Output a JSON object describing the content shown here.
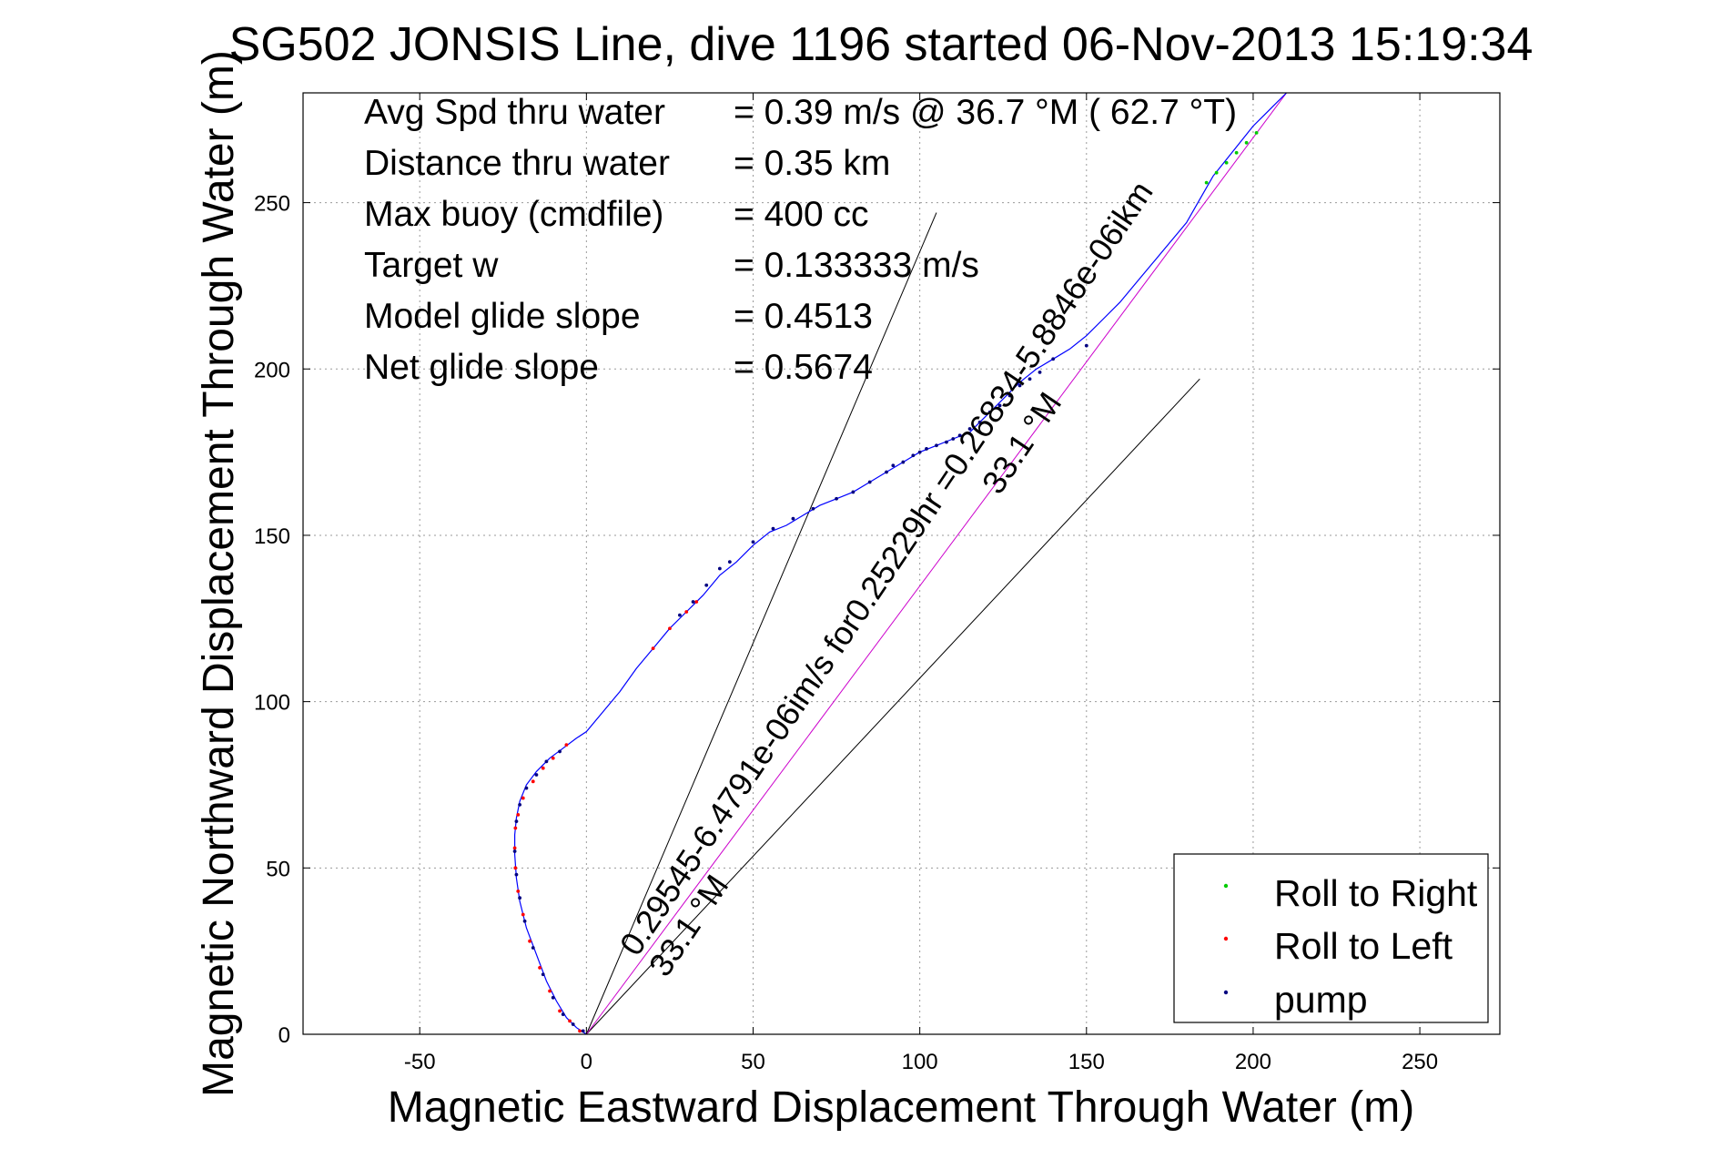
{
  "chart_data": {
    "type": "scatter",
    "title": "SG502 JONSIS Line, dive 1196 started 06-Nov-2013 15:19:34",
    "xlabel": "Magnetic Eastward Displacement Through Water (m)",
    "ylabel": "Magnetic Northward Displacement Through Water (m)",
    "xlim": [
      -85,
      274
    ],
    "ylim": [
      0,
      283
    ],
    "x_ticks": [
      -50,
      0,
      50,
      100,
      150,
      200,
      250
    ],
    "x_tick_labels": [
      "-50",
      "0",
      "50",
      "100",
      "150",
      "200",
      "250"
    ],
    "y_ticks": [
      0,
      50,
      100,
      150,
      200,
      250
    ],
    "y_tick_labels": [
      "0",
      "50",
      "100",
      "150",
      "200",
      "250"
    ],
    "grid": true,
    "legend_position": "bottom-right",
    "stats": [
      {
        "label": "Avg Spd thru water",
        "value": "=  0.39 m/s @  36.7 °M ( 62.7 °T)"
      },
      {
        "label": "Distance thru water",
        "value": "=  0.35 km"
      },
      {
        "label": "Max buoy (cmdfile)",
        "value": "= 400 cc"
      },
      {
        "label": "Target w",
        "value": "= 0.133333 m/s"
      },
      {
        "label": "Model glide slope",
        "value": "= 0.4513"
      },
      {
        "label": "Net glide slope",
        "value": "= 0.5674"
      }
    ],
    "annotations": [
      {
        "text": "0.29545-6.4791e-06im/s for0.25229hr =0.26834-5.8846e-06ikm",
        "angle_deg": 56
      },
      {
        "text": "33.1 °M",
        "angle_deg": 56
      },
      {
        "text": "33.1 °M",
        "angle_deg": 56
      }
    ],
    "reference_lines": [
      {
        "name": "glide-cone-upper",
        "x": [
          0,
          105
        ],
        "y": [
          0,
          247
        ]
      },
      {
        "name": "glide-cone-lower",
        "x": [
          0,
          184
        ],
        "y": [
          0,
          197
        ]
      },
      {
        "name": "net-heading-line",
        "x": [
          0,
          210
        ],
        "y": [
          0,
          283
        ]
      }
    ],
    "track": {
      "x": [
        0,
        -3,
        -6,
        -9,
        -12,
        -15,
        -18,
        -20,
        -21,
        -21.5,
        -21.5,
        -21,
        -20,
        -18,
        -15,
        -11,
        -7,
        -3,
        0,
        5,
        10,
        15,
        20,
        25,
        30,
        35,
        40,
        45,
        50,
        55,
        60,
        65,
        70,
        75,
        80,
        85,
        90,
        95,
        100,
        105,
        110,
        115,
        118,
        121,
        124,
        127,
        130,
        135,
        140,
        145,
        150,
        155,
        160,
        165,
        170,
        175,
        180,
        184,
        188,
        192,
        196,
        200,
        203,
        206,
        210
      ],
      "y": [
        0,
        2,
        5,
        10,
        16,
        24,
        32,
        40,
        47,
        54,
        60,
        65,
        70,
        75,
        79,
        83,
        86,
        89,
        91,
        97,
        103,
        110,
        116,
        122,
        127,
        132,
        138,
        142,
        147,
        151,
        153,
        156,
        159,
        161,
        163,
        166,
        169,
        172,
        175,
        177,
        179,
        181,
        184,
        187,
        190,
        193,
        196,
        200,
        203,
        206,
        210,
        215,
        220,
        226,
        232,
        238,
        244,
        251,
        258,
        263,
        268,
        273,
        276,
        279,
        283
      ]
    },
    "series": [
      {
        "name": "Roll to Right",
        "color": "#00cc00",
        "marker": ".",
        "x": [
          186,
          189,
          192,
          195,
          198,
          201
        ],
        "y": [
          256,
          259,
          262,
          265,
          268,
          271
        ]
      },
      {
        "name": "Roll to Left",
        "color": "#ff0000",
        "marker": ".",
        "x": [
          -2,
          -5,
          -8,
          -11,
          -14,
          -17,
          -19,
          -20.5,
          -21.3,
          -21.5,
          -21.3,
          -20.5,
          -19,
          -16,
          -13,
          -10,
          -6,
          20,
          25,
          30,
          33
        ],
        "y": [
          1,
          4,
          7,
          13,
          20,
          28,
          36,
          43,
          50,
          56,
          62,
          66,
          71,
          76,
          80,
          83,
          87,
          116,
          122,
          127,
          130
        ]
      },
      {
        "name": "pump",
        "color": "#000080",
        "marker": ".",
        "x": [
          -1,
          -4,
          -7,
          -10,
          -13,
          -16,
          -18.5,
          -20,
          -21,
          -21.5,
          -21,
          -20,
          -18,
          -15,
          -12,
          -8,
          28,
          32,
          36,
          40,
          43,
          50,
          56,
          62,
          68,
          75,
          80,
          85,
          90,
          92,
          95,
          98,
          100,
          102,
          105,
          108,
          110,
          112,
          115,
          118,
          121,
          124,
          127,
          130,
          133,
          136,
          140,
          150
        ],
        "y": [
          1,
          3,
          6,
          11,
          18,
          26,
          34,
          41,
          48,
          55,
          64,
          69,
          74,
          78,
          82,
          85,
          126,
          130,
          135,
          140,
          142,
          148,
          152,
          155,
          158,
          161,
          163,
          166,
          169,
          171,
          172,
          174,
          175,
          176,
          177,
          178,
          179,
          180,
          182,
          184,
          187,
          189,
          192,
          195,
          197,
          199,
          203,
          207
        ]
      }
    ]
  }
}
